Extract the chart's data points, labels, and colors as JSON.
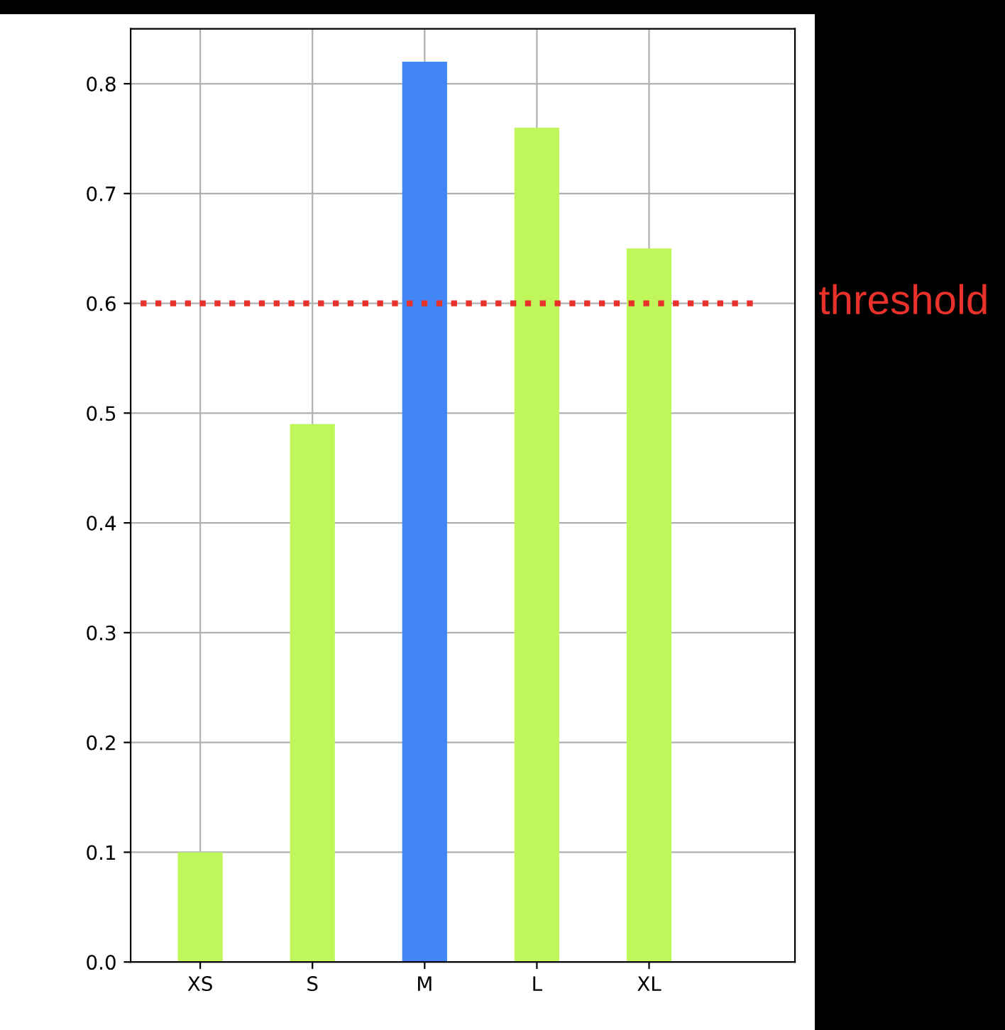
{
  "chart_data": {
    "type": "bar",
    "categories": [
      "XS",
      "S",
      "M",
      "L",
      "XL"
    ],
    "values": [
      0.1,
      0.49,
      0.82,
      0.76,
      0.65
    ],
    "colors": [
      "#bff65a",
      "#bff65a",
      "#4285f4",
      "#bff65a",
      "#bff65a"
    ],
    "ylim": [
      0,
      0.85
    ],
    "yticks": [
      {
        "value": 0,
        "label": "0.0"
      },
      0.1,
      0.2,
      0.3,
      0.4,
      0.5,
      0.6,
      0.7,
      0.8
    ],
    "ref_lines": [
      {
        "axis": "y",
        "value": 0.6,
        "label": "threshold",
        "color": "#e8312a",
        "line_style": "dotted"
      }
    ],
    "grid": true
  }
}
